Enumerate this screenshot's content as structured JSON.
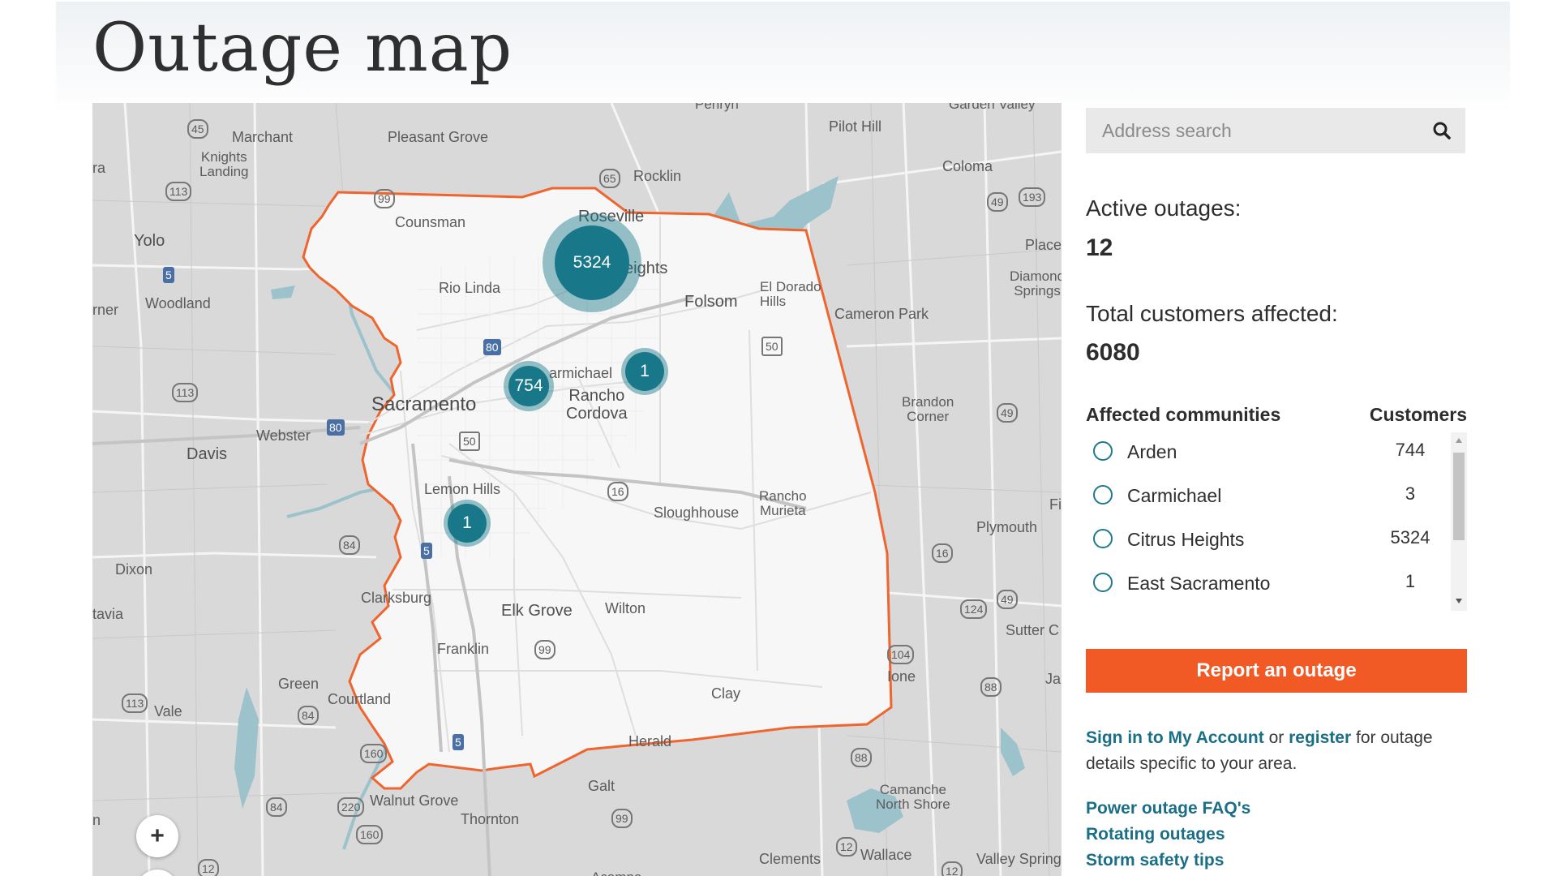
{
  "page": {
    "title": "Outage map"
  },
  "map": {
    "labels": {
      "marchant": "Marchant",
      "pleasant_grove": "Pleasant Grove",
      "penryn": "Penryn",
      "garden_valley": "Garden Valley",
      "pilot_hill": "Pilot Hill",
      "knights_landing": "Knights\nLanding",
      "rocklin": "Rocklin",
      "coloma": "Coloma",
      "counsman": "Counsman",
      "roseville": "Roseville",
      "yolo": "Yolo",
      "placerville": "Placer",
      "diamond_springs": "Diamond\nSprings",
      "citrus_heights": "eights",
      "rio_linda": "Rio Linda",
      "folsom": "Folsom",
      "el_dorado_hills": "El Dorado\nHills",
      "woodland": "Woodland",
      "cameron_park": "Cameron Park",
      "carmichael": "armichael",
      "rancho_cordova": "Rancho\nCordova",
      "sacramento": "Sacramento",
      "brandon_corner": "Brandon\nCorner",
      "webster": "Webster",
      "davis": "Davis",
      "lemon_hills": "Lemon Hills",
      "rancho_murieta": "Rancho\nMurieta",
      "sloughhouse": "Sloughhouse",
      "plymouth": "Plymouth",
      "dixon": "Dixon",
      "clarksburg": "Clarksburg",
      "elk_grove": "Elk Grove",
      "wilton": "Wilton",
      "sutter_creek": "Sutter C",
      "franklin": "Franklin",
      "ione": "Ione",
      "green": "Green",
      "courtland": "Courtland",
      "clay": "Clay",
      "vale": "Vale",
      "herald": "Herald",
      "galt": "Galt",
      "camanche": "Camanche\nNorth Shore",
      "walnut_grove": "Walnut Grove",
      "thornton": "Thornton",
      "clements": "Clements",
      "wallace": "Wallace",
      "valley_springs": "Valley Spring",
      "acampo": "Acampo",
      "ra": "ra",
      "rner": "rner",
      "tavia": "tavia",
      "n": "n",
      "ja": "Ja",
      "fi": "Fi"
    },
    "shields": [
      "45",
      "113",
      "99",
      "65",
      "193",
      "49",
      "5",
      "80",
      "50",
      "113",
      "80",
      "50",
      "49",
      "16",
      "84",
      "5",
      "16",
      "124",
      "49",
      "99",
      "104",
      "113",
      "84",
      "88",
      "160",
      "5",
      "88",
      "220",
      "160",
      "84",
      "99",
      "12",
      "12",
      "12"
    ],
    "clusters": [
      {
        "label": "5324",
        "count": 5324
      },
      {
        "label": "754",
        "count": 754
      },
      {
        "label": "1",
        "count": 1
      },
      {
        "label": "1",
        "count": 1
      }
    ],
    "zoom_in_label": "+"
  },
  "sidebar": {
    "search": {
      "placeholder": "Address search"
    },
    "active_outages": {
      "label": "Active outages:",
      "value": "12"
    },
    "total_customers": {
      "label": "Total customers affected:",
      "value": "6080"
    },
    "communities": {
      "header_label": "Affected communities",
      "header_customers": "Customers",
      "items": [
        {
          "name": "Arden",
          "customers": "744"
        },
        {
          "name": "Carmichael",
          "customers": "3"
        },
        {
          "name": "Citrus Heights",
          "customers": "5324"
        },
        {
          "name": "East Sacramento",
          "customers": "1"
        }
      ]
    },
    "report_button": "Report an outage",
    "signin": {
      "link1": "Sign in to My Account",
      "middle": "or",
      "link2": "register",
      "rest": "for outage details specific to your area."
    },
    "links": [
      "Power outage FAQ's",
      "Rotating outages",
      "Storm safety tips"
    ]
  },
  "colors": {
    "cluster": "#18788a",
    "boundary": "#f0642d",
    "report_button": "#f15a24",
    "link": "#1a6e85",
    "map_bg": "#d9d9d9",
    "service_area": "#f7f7f7"
  }
}
